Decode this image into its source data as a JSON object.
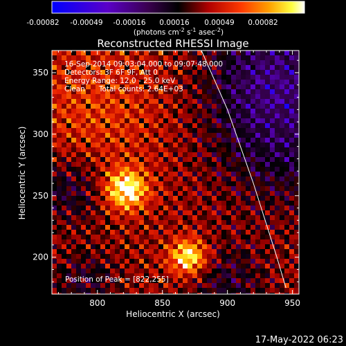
{
  "chart_data": {
    "type": "heatmap",
    "title": "Reconstructed RHESSI Image",
    "xlabel": "Heliocentric X (arcsec)",
    "ylabel": "Heliocentric Y (arcsec)",
    "xlim": [
      765,
      955
    ],
    "ylim": [
      170,
      368
    ],
    "x_ticks": [
      "800",
      "850",
      "900",
      "950"
    ],
    "x_tick_values": [
      800,
      850,
      900,
      950
    ],
    "y_ticks": [
      "200",
      "250",
      "300",
      "350"
    ],
    "y_tick_values": [
      200,
      250,
      300,
      350
    ],
    "colorbar": {
      "colormap": "RHESSI (blue-violet → black → red → orange → yellow → white)",
      "range": [
        -0.00082,
        0.00082
      ],
      "tick_labels": [
        "-0.00082",
        "-0.00049",
        "-0.00016",
        "0.00016",
        "0.00049",
        "0.00082"
      ],
      "units_line1": "(photons cm",
      "units_sup1": "-2",
      "units_line2": " s",
      "units_sup2": "-1",
      "units_line3": " asec",
      "units_sup3": "-2",
      "units_close": ")"
    },
    "annotations": [
      "16-Sep-2014 09:03:04.000 to 09:07:48.000",
      "Detectors: 3F 6F 9F, Att 0",
      "Energy Range: 12.0 - 25.0 keV",
      "Clean      Total counts: 2.64E+03"
    ],
    "peak": {
      "label": "Position of Peak = [822,255]",
      "x": 822,
      "y": 255
    },
    "secondary_source": {
      "x": 870,
      "y": 200
    },
    "limb_line": [
      [
        880,
        368
      ],
      [
        900,
        320
      ],
      [
        920,
        260
      ],
      [
        938,
        200
      ],
      [
        945,
        175
      ]
    ],
    "grid": false,
    "footer_date": "17-May-2022 06:23"
  }
}
